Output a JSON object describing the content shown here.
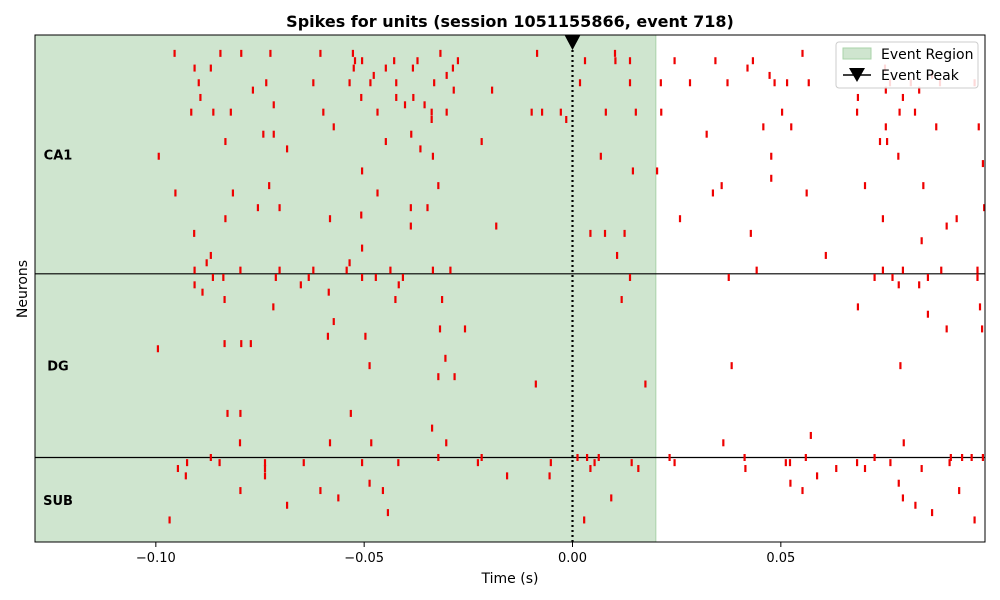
{
  "chart_data": {
    "type": "scatter",
    "title": "Spikes for units (session 1051155866, event 718)",
    "xlabel": "Time (s)",
    "ylabel": "Neurons",
    "xlim": [
      -0.129,
      0.099
    ],
    "ylim": [
      0,
      69
    ],
    "xticks": [
      {
        "value": -0.1,
        "label": "−0.10"
      },
      {
        "value": -0.05,
        "label": "−0.05"
      },
      {
        "value": 0.0,
        "label": "0.00"
      },
      {
        "value": 0.05,
        "label": "0.05"
      }
    ],
    "event_region": {
      "x0": -0.129,
      "x1": 0.02,
      "label": "Event Region",
      "color": "#cfe5cf"
    },
    "event_peak": {
      "x": 0.0,
      "label": "Event Peak"
    },
    "spike_color": "#ee0000",
    "regions": [
      {
        "name": "CA1",
        "y0": 0,
        "y1": 32.5
      },
      {
        "name": "DG",
        "y0": 32.5,
        "y1": 57.5
      },
      {
        "name": "SUB",
        "y0": 57.5,
        "y1": 69
      }
    ],
    "legend_position": "top-right",
    "units": [
      {
        "y": 2.5,
        "spikes": [
          -0.0955,
          -0.0845,
          -0.0795,
          -0.0725,
          -0.0605,
          -0.0527,
          -0.0317,
          -0.0085,
          0.0102,
          0.0552,
          0.0662
        ]
      },
      {
        "y": 3.5,
        "spikes": [
          -0.0522,
          -0.0505,
          -0.0428,
          -0.0372,
          -0.0275,
          0.003,
          0.0103,
          0.0138,
          0.0245,
          0.0343,
          0.0433
        ]
      },
      {
        "y": 4.5,
        "spikes": [
          -0.0907,
          -0.0868,
          -0.0525,
          -0.0448,
          -0.0383,
          -0.0287,
          0.042,
          0.075
        ]
      },
      {
        "y": 5.5,
        "spikes": [
          -0.0477,
          -0.0302,
          0.0473,
          0.0863
        ]
      },
      {
        "y": 6.5,
        "spikes": [
          -0.0897,
          -0.0735,
          -0.0622,
          -0.0535,
          -0.0485,
          -0.0423,
          -0.0332,
          0.0018,
          0.0138,
          0.0212,
          0.0282,
          0.0372,
          0.0485,
          0.0515,
          0.0567,
          0.0762,
          0.0812,
          0.0882,
          0.0965
        ]
      },
      {
        "y": 7.5,
        "spikes": [
          -0.0767,
          -0.0285,
          -0.0193,
          0.0752,
          0.0832
        ]
      },
      {
        "y": 8.5,
        "spikes": [
          -0.0893,
          -0.0507,
          -0.0423,
          -0.0382,
          0.0685,
          0.0793
        ]
      },
      {
        "y": 9.5,
        "spikes": [
          -0.0717,
          -0.0402,
          -0.0355
        ]
      },
      {
        "y": 10.5,
        "spikes": [
          -0.0915,
          -0.0862,
          -0.082,
          -0.0598,
          -0.0468,
          -0.0338,
          -0.0302,
          -0.0098,
          -0.0073,
          -0.0028,
          0.008,
          0.0152,
          0.0213,
          0.0503,
          0.0683,
          0.0785,
          0.0822
        ]
      },
      {
        "y": 11.5,
        "spikes": [
          -0.0338,
          -0.0015
        ]
      },
      {
        "y": 12.5,
        "spikes": [
          -0.0573,
          0.0458,
          0.0525,
          0.0752,
          0.0873,
          0.0975
        ]
      },
      {
        "y": 13.5,
        "spikes": [
          -0.0742,
          -0.0717,
          -0.0387,
          0.0322
        ]
      },
      {
        "y": 14.5,
        "spikes": [
          -0.0833,
          -0.0448,
          -0.0218,
          0.0738,
          0.0755
        ]
      },
      {
        "y": 15.5,
        "spikes": [
          -0.0685,
          -0.0365
        ]
      },
      {
        "y": 16.5,
        "spikes": [
          -0.0993,
          -0.0335,
          0.0068,
          0.0477,
          0.0782
        ]
      },
      {
        "y": 17.5,
        "spikes": [
          0.0985
        ]
      },
      {
        "y": 18.5,
        "spikes": [
          -0.0505,
          0.0145,
          0.0203
        ]
      },
      {
        "y": 19.5,
        "spikes": [
          0.0477
        ]
      },
      {
        "y": 20.5,
        "spikes": [
          -0.0728,
          -0.0322,
          0.0358,
          0.0702,
          0.0842
        ]
      },
      {
        "y": 21.5,
        "spikes": [
          -0.0953,
          -0.0815,
          -0.0468,
          0.0337,
          0.0562
        ]
      },
      {
        "y": 23.5,
        "spikes": [
          -0.0755,
          -0.0703,
          -0.0388,
          -0.0348,
          0.0988
        ]
      },
      {
        "y": 24.5,
        "spikes": [
          -0.0507
        ]
      },
      {
        "y": 25,
        "spikes": [
          -0.0833,
          -0.0582,
          0.0258,
          0.0745,
          0.0922
        ]
      },
      {
        "y": 26,
        "spikes": [
          -0.0388,
          -0.0183,
          0.0898
        ]
      },
      {
        "y": 27,
        "spikes": [
          -0.0908,
          0.0043,
          0.0078,
          0.0125,
          0.0428
        ]
      },
      {
        "y": 28,
        "spikes": [
          0.0838
        ]
      },
      {
        "y": 29,
        "spikes": [
          -0.0505
        ]
      },
      {
        "y": 30,
        "spikes": [
          -0.0868,
          0.0107,
          0.0608
        ]
      },
      {
        "y": 31,
        "spikes": [
          -0.0878,
          -0.0535
        ]
      },
      {
        "y": 32,
        "spikes": [
          -0.0907,
          -0.0797,
          -0.0703,
          -0.0622,
          -0.0542,
          -0.0437,
          -0.0335,
          -0.0293,
          0.0442,
          0.0745,
          0.0793,
          0.0885,
          0.0972
        ]
      },
      {
        "y": 33,
        "spikes": [
          -0.0863,
          -0.0838,
          -0.0712,
          -0.0633,
          -0.0505,
          -0.0472,
          -0.0407,
          0.0138,
          0.0375,
          0.0725,
          0.0768,
          0.0853,
          0.0972
        ]
      },
      {
        "y": 34,
        "spikes": [
          -0.0907,
          -0.0652,
          -0.0417,
          0.0783,
          0.0832
        ]
      },
      {
        "y": 35,
        "spikes": [
          -0.0888,
          -0.0585
        ]
      },
      {
        "y": 36,
        "spikes": [
          -0.0835,
          -0.0425,
          -0.0313,
          0.0118
        ]
      },
      {
        "y": 37,
        "spikes": [
          -0.0718,
          0.0685,
          0.0978
        ]
      },
      {
        "y": 38,
        "spikes": [
          0.0853
        ]
      },
      {
        "y": 39,
        "spikes": [
          -0.0573
        ]
      },
      {
        "y": 40,
        "spikes": [
          -0.0318,
          -0.0258,
          0.0898,
          0.0983
        ]
      },
      {
        "y": 41,
        "spikes": [
          -0.0587,
          -0.0497
        ]
      },
      {
        "y": 42,
        "spikes": [
          -0.0835,
          -0.0795,
          -0.0772
        ]
      },
      {
        "y": 42.7,
        "spikes": [
          -0.0995
        ]
      },
      {
        "y": 44,
        "spikes": [
          -0.0305
        ]
      },
      {
        "y": 45,
        "spikes": [
          -0.0487,
          0.0382,
          0.0787
        ]
      },
      {
        "y": 46.5,
        "spikes": [
          -0.0322,
          -0.0283
        ]
      },
      {
        "y": 47.5,
        "spikes": [
          -0.0088,
          0.0175
        ]
      },
      {
        "y": 51.5,
        "spikes": [
          -0.0828,
          -0.0797,
          -0.0532
        ]
      },
      {
        "y": 53.5,
        "spikes": [
          -0.0337
        ]
      },
      {
        "y": 54.5,
        "spikes": [
          0.0572
        ]
      },
      {
        "y": 55.5,
        "spikes": [
          -0.0798,
          -0.0582,
          -0.0483,
          -0.0303,
          0.0362,
          0.0795
        ]
      },
      {
        "y": 57.5,
        "spikes": [
          -0.0868,
          -0.0322,
          -0.0218,
          0.0012,
          0.0035,
          0.0063,
          0.0233,
          0.0413,
          0.056,
          0.0725,
          0.0908,
          0.0935,
          0.0958,
          0.0985
        ]
      },
      {
        "y": 58.2,
        "spikes": [
          -0.0925,
          -0.0847,
          -0.0738,
          -0.0645,
          -0.0505,
          -0.0418,
          -0.0227,
          -0.0052,
          0.0053,
          0.0142,
          0.0245,
          0.0512,
          0.0522,
          0.0683,
          0.0763,
          0.0905
        ]
      },
      {
        "y": 59,
        "spikes": [
          -0.0947,
          -0.0738,
          0.0043,
          0.0158,
          0.0415,
          0.0633,
          0.0702,
          0.0838
        ]
      },
      {
        "y": 60,
        "spikes": [
          -0.0928,
          -0.0738,
          -0.0157,
          -0.0055,
          0.0587
        ]
      },
      {
        "y": 61,
        "spikes": [
          -0.0487,
          0.0523,
          0.0783
        ]
      },
      {
        "y": 62,
        "spikes": [
          -0.0797,
          -0.0605,
          -0.0455,
          0.0552,
          0.0928
        ]
      },
      {
        "y": 63,
        "spikes": [
          -0.0562,
          0.0093,
          0.0793
        ]
      },
      {
        "y": 64,
        "spikes": [
          -0.0685,
          0.0823
        ]
      },
      {
        "y": 65,
        "spikes": [
          -0.0443,
          0.0863
        ]
      },
      {
        "y": 66,
        "spikes": [
          -0.0967,
          0.0028,
          0.0965
        ]
      }
    ]
  }
}
